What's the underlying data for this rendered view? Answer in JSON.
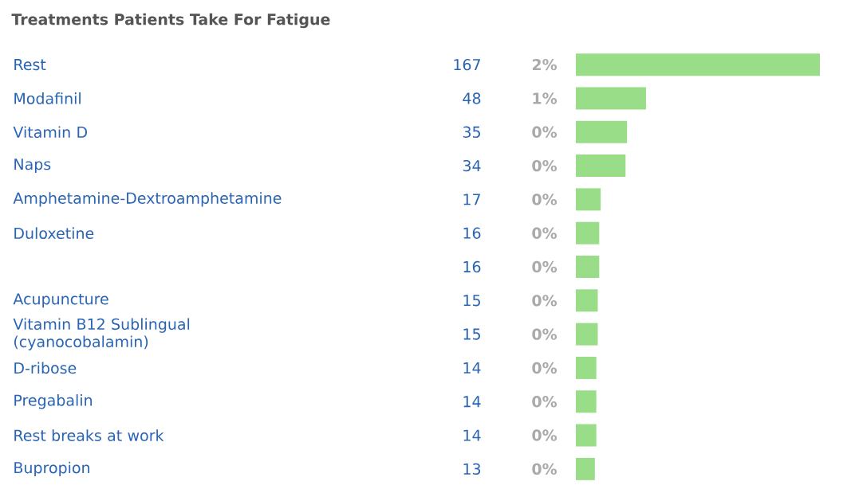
{
  "chart_data": {
    "type": "bar",
    "orientation": "horizontal",
    "title": "Treatments Patients Take For Fatigue",
    "categories": [
      "Rest",
      "Modafinil",
      "Vitamin D",
      "Naps",
      "Amphetamine-Dextroamphetamine",
      "Duloxetine",
      null,
      "Acupuncture",
      "Vitamin B12 Sublingual (cyanocobalamin)",
      "D-ribose",
      "Pregabalin",
      "Rest breaks at work",
      "Bupropion"
    ],
    "values": [
      167,
      48,
      35,
      34,
      17,
      16,
      16,
      15,
      15,
      14,
      14,
      14,
      13
    ],
    "color": "#99dd88",
    "data_labels": true,
    "annotations": [
      "2%",
      "1%",
      "0%",
      "0%",
      "0%",
      "0%",
      "0%",
      "0%",
      "0%",
      "0%",
      "0%",
      "0%",
      "0%"
    ]
  }
}
